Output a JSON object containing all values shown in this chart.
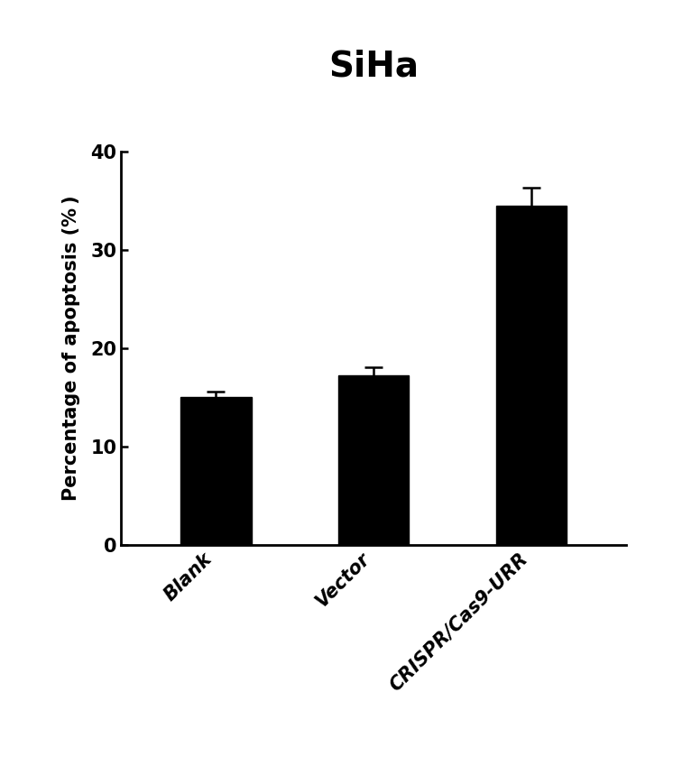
{
  "categories": [
    "Blank",
    "Vector",
    "CRISPR/Cas9-URR"
  ],
  "values": [
    15.0,
    17.2,
    34.5
  ],
  "errors": [
    0.6,
    0.9,
    1.8
  ],
  "bar_color": "#000000",
  "title": "SiHa",
  "ylabel": "Percentage of apoptosis (% )",
  "ylim": [
    0,
    40
  ],
  "yticks": [
    0,
    10,
    20,
    30,
    40
  ],
  "title_fontsize": 28,
  "label_fontsize": 15,
  "tick_fontsize": 15,
  "bar_width": 0.45,
  "background_color": "#ffffff",
  "error_capsize": 7,
  "error_linewidth": 1.8,
  "error_color": "#000000",
  "spine_linewidth": 2.0
}
